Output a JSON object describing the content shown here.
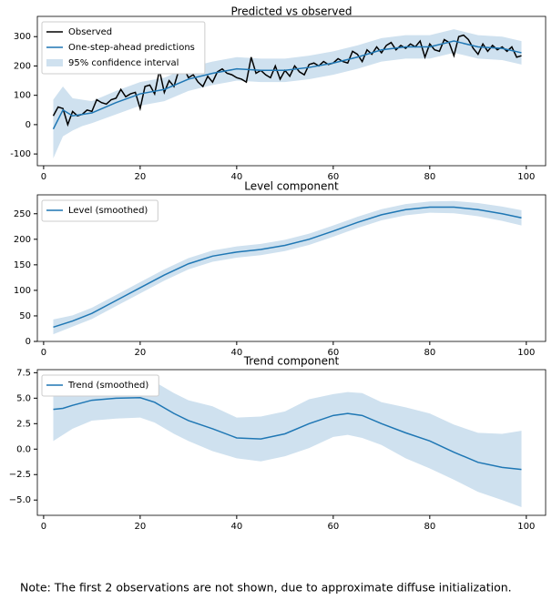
{
  "chart_data": [
    {
      "type": "line",
      "title": "Predicted vs observed",
      "xlim": [
        -1.3,
        104
      ],
      "ylim": [
        -140,
        369
      ],
      "xticks": [
        0,
        20,
        40,
        60,
        80,
        100
      ],
      "yticks": [
        -100,
        0,
        100,
        200,
        300
      ],
      "legend": "upper left",
      "series": [
        {
          "name": "Observed",
          "color": "#000000",
          "x": [
            2,
            3,
            4,
            5,
            6,
            7,
            8,
            9,
            10,
            11,
            12,
            13,
            14,
            15,
            16,
            17,
            18,
            19,
            20,
            21,
            22,
            23,
            24,
            25,
            26,
            27,
            28,
            29,
            30,
            31,
            32,
            33,
            34,
            35,
            36,
            37,
            38,
            39,
            40,
            41,
            42,
            43,
            44,
            45,
            46,
            47,
            48,
            49,
            50,
            51,
            52,
            53,
            54,
            55,
            56,
            57,
            58,
            59,
            60,
            61,
            62,
            63,
            64,
            65,
            66,
            67,
            68,
            69,
            70,
            71,
            72,
            73,
            74,
            75,
            76,
            77,
            78,
            79,
            80,
            81,
            82,
            83,
            84,
            85,
            86,
            87,
            88,
            89,
            90,
            91,
            92,
            93,
            94,
            95,
            96,
            97,
            98,
            99
          ],
          "values": [
            30,
            60,
            55,
            0,
            45,
            30,
            35,
            50,
            45,
            85,
            75,
            70,
            85,
            90,
            120,
            95,
            105,
            110,
            55,
            130,
            135,
            105,
            185,
            110,
            150,
            130,
            185,
            195,
            160,
            170,
            145,
            130,
            165,
            145,
            180,
            190,
            175,
            170,
            160,
            155,
            145,
            230,
            175,
            185,
            170,
            160,
            200,
            155,
            185,
            165,
            200,
            180,
            170,
            205,
            210,
            200,
            215,
            205,
            210,
            225,
            215,
            210,
            250,
            240,
            215,
            255,
            240,
            265,
            245,
            270,
            280,
            255,
            270,
            260,
            275,
            265,
            285,
            230,
            275,
            255,
            250,
            290,
            280,
            235,
            300,
            305,
            290,
            260,
            240,
            275,
            250,
            270,
            255,
            265,
            250,
            265,
            230,
            235
          ]
        },
        {
          "name": "One-step-ahead predictions",
          "color": "#1f77b4",
          "x": [
            2,
            4,
            6,
            8,
            10,
            15,
            20,
            25,
            30,
            35,
            40,
            45,
            50,
            55,
            60,
            65,
            70,
            75,
            80,
            85,
            90,
            95,
            99
          ],
          "values": [
            -15,
            50,
            30,
            35,
            40,
            75,
            105,
            120,
            155,
            175,
            190,
            185,
            185,
            195,
            210,
            230,
            255,
            265,
            265,
            285,
            265,
            260,
            245
          ]
        }
      ],
      "band": {
        "name": "95% confidence interval",
        "color": "#cfe1ef",
        "x": [
          2,
          4,
          6,
          8,
          10,
          15,
          20,
          25,
          30,
          35,
          40,
          45,
          50,
          55,
          60,
          65,
          70,
          75,
          80,
          85,
          90,
          95,
          99
        ],
        "lower": [
          -115,
          -40,
          -20,
          -5,
          5,
          35,
          65,
          80,
          115,
          135,
          150,
          145,
          145,
          155,
          170,
          190,
          215,
          225,
          225,
          245,
          225,
          220,
          205
        ],
        "upper": [
          85,
          130,
          90,
          85,
          80,
          115,
          145,
          160,
          195,
          215,
          230,
          225,
          225,
          235,
          250,
          270,
          295,
          305,
          305,
          325,
          305,
          300,
          285
        ]
      }
    },
    {
      "type": "line",
      "title": "Level component",
      "xlim": [
        -1.3,
        104
      ],
      "ylim": [
        0,
        287
      ],
      "xticks": [
        0,
        20,
        40,
        60,
        80,
        100
      ],
      "yticks": [
        0,
        50,
        100,
        150,
        200,
        250
      ],
      "legend": "upper left",
      "series": [
        {
          "name": "Level (smoothed)",
          "color": "#1f77b4",
          "x": [
            2,
            6,
            10,
            15,
            20,
            25,
            30,
            35,
            40,
            45,
            50,
            55,
            60,
            65,
            70,
            75,
            80,
            85,
            90,
            95,
            99
          ],
          "values": [
            28,
            40,
            55,
            80,
            105,
            130,
            152,
            167,
            175,
            180,
            188,
            200,
            216,
            233,
            248,
            258,
            263,
            263,
            258,
            250,
            242
          ]
        }
      ],
      "band": {
        "color": "#cfe1ef",
        "x": [
          2,
          6,
          10,
          15,
          20,
          25,
          30,
          35,
          40,
          45,
          50,
          55,
          60,
          65,
          70,
          75,
          80,
          85,
          90,
          95,
          99
        ],
        "lower": [
          14,
          29,
          44,
          69,
          94,
          119,
          141,
          156,
          164,
          169,
          177,
          189,
          205,
          222,
          237,
          247,
          252,
          251,
          245,
          236,
          227
        ],
        "upper": [
          43,
          51,
          66,
          91,
          116,
          141,
          163,
          178,
          186,
          191,
          199,
          211,
          227,
          244,
          259,
          269,
          274,
          275,
          271,
          264,
          257
        ]
      }
    },
    {
      "type": "line",
      "title": "Trend component",
      "xlim": [
        -1.3,
        104
      ],
      "ylim": [
        -6.5,
        7.8
      ],
      "xticks": [
        0,
        20,
        40,
        60,
        80,
        100
      ],
      "yticks": [
        {
          "value": -5,
          "label": "−5.0"
        },
        {
          "value": -2.5,
          "label": "−2.5"
        },
        {
          "value": 0,
          "label": "0.0"
        },
        2.5,
        {
          "value": 5,
          "label": "5.0"
        },
        7.5
      ],
      "legend": "upper left",
      "series": [
        {
          "name": "Trend (smoothed)",
          "color": "#1f77b4",
          "x": [
            2,
            4,
            6,
            10,
            15,
            20,
            23,
            27,
            30,
            35,
            40,
            45,
            50,
            55,
            60,
            63,
            66,
            70,
            75,
            80,
            85,
            90,
            95,
            99
          ],
          "values": [
            3.9,
            4.0,
            4.3,
            4.8,
            5.0,
            5.05,
            4.6,
            3.5,
            2.8,
            2.0,
            1.1,
            1.0,
            1.5,
            2.5,
            3.3,
            3.5,
            3.3,
            2.5,
            1.6,
            0.8,
            -0.3,
            -1.3,
            -1.8,
            -2.0
          ]
        }
      ],
      "band": {
        "color": "#cfe1ef",
        "x": [
          2,
          4,
          6,
          10,
          15,
          20,
          23,
          27,
          30,
          35,
          40,
          45,
          50,
          55,
          60,
          63,
          66,
          70,
          75,
          80,
          85,
          90,
          95,
          99
        ],
        "lower": [
          0.8,
          1.4,
          2.0,
          2.8,
          3.0,
          3.1,
          2.6,
          1.5,
          0.8,
          -0.2,
          -0.9,
          -1.2,
          -0.7,
          0.1,
          1.2,
          1.4,
          1.1,
          0.4,
          -0.9,
          -1.9,
          -3.0,
          -4.2,
          -5.0,
          -5.7
        ],
        "upper": [
          7.0,
          6.6,
          6.6,
          6.8,
          7.0,
          7.0,
          6.6,
          5.5,
          4.8,
          4.2,
          3.1,
          3.2,
          3.7,
          4.9,
          5.4,
          5.6,
          5.5,
          4.6,
          4.1,
          3.5,
          2.4,
          1.6,
          1.5,
          1.8
        ]
      }
    }
  ],
  "note": "Note: The first 2 observations are not shown, due to approximate diffuse initialization."
}
